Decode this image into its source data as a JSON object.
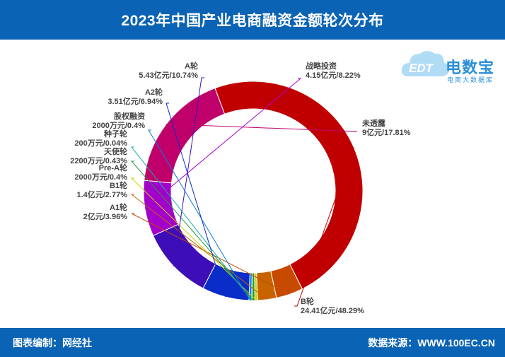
{
  "header": {
    "title": "2023年中国产业电商融资金额轮次分布"
  },
  "footer": {
    "left": "图表编制：网经社",
    "right": "数据来源：WWW.100EC.CN"
  },
  "logo": {
    "name": "电数宝",
    "subtitle": "电商大数据库",
    "badge": "EDT"
  },
  "colors": {
    "header_bg": "#0a63b4",
    "B轮": "#c00000",
    "未透露": "#c0006a",
    "战略投资": "#a300cc",
    "A轮": "#3d0eb8",
    "A2轮": "#0a2cc8",
    "股权融资": "#0a7bd8",
    "种子轮": "#12b0a8",
    "天使轮": "#1f9a3a",
    "Pre-A轮": "#c8d400",
    "B1轮": "#c86400",
    "A1轮": "#c84a00"
  },
  "chart_data": {
    "type": "pie",
    "subtype": "donut",
    "title": "2023年中国产业电商融资金额轮次分布",
    "slices": [
      {
        "name": "未透露",
        "value": 17.81,
        "label": "9亿元/17.81%"
      },
      {
        "name": "B轮",
        "value": 48.29,
        "label": "24.41亿元/48.29%"
      },
      {
        "name": "A1轮",
        "value": 3.96,
        "label": "2亿元/3.96%"
      },
      {
        "name": "B1轮",
        "value": 2.77,
        "label": "1.4亿元/2.77%"
      },
      {
        "name": "Pre-A轮",
        "value": 0.4,
        "label": "2000万元/0.4%"
      },
      {
        "name": "天使轮",
        "value": 0.43,
        "label": "2200万元/0.43%"
      },
      {
        "name": "种子轮",
        "value": 0.04,
        "label": "200万元/0.04%"
      },
      {
        "name": "股权融资",
        "value": 0.4,
        "label": "2000万元/0.4%"
      },
      {
        "name": "A2轮",
        "value": 6.94,
        "label": "3.51亿元/6.94%"
      },
      {
        "name": "A轮",
        "value": 10.74,
        "label": "5.43亿元/10.74%"
      },
      {
        "name": "战略投资",
        "value": 8.22,
        "label": "4.15亿元/8.22%"
      }
    ]
  }
}
